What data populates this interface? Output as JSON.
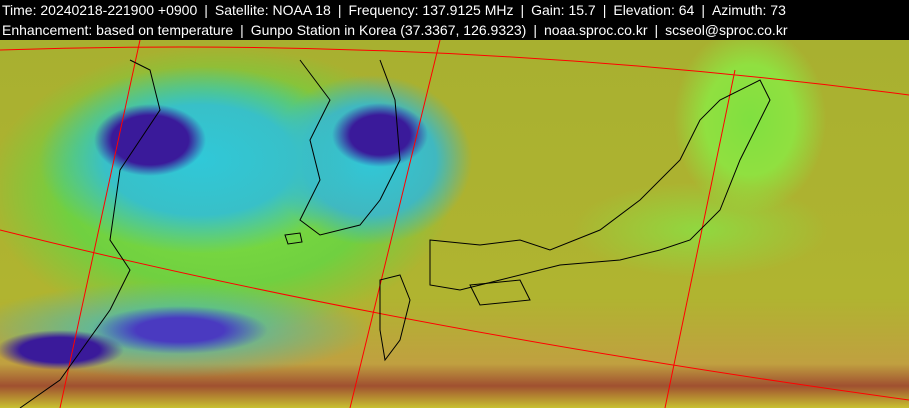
{
  "header": {
    "line1": {
      "time": "Time: 20240218-221900 +0900",
      "satellite": "Satellite: NOAA 18",
      "frequency": "Frequency: 137.9125 MHz",
      "gain": "Gain: 15.7",
      "elevation": "Elevation: 64",
      "azimuth": "Azimuth: 73"
    },
    "line2": {
      "enhancement": "Enhancement: based on temperature",
      "station": "Gunpo Station in Korea (37.3367, 126.9323)",
      "website": "noaa.sproc.co.kr",
      "email": "scseol@sproc.co.kr"
    },
    "separator": "|"
  },
  "colors": {
    "grid": "#ff0000",
    "coastline": "#000000",
    "header_bg": "#000000",
    "header_text": "#ffffff"
  }
}
